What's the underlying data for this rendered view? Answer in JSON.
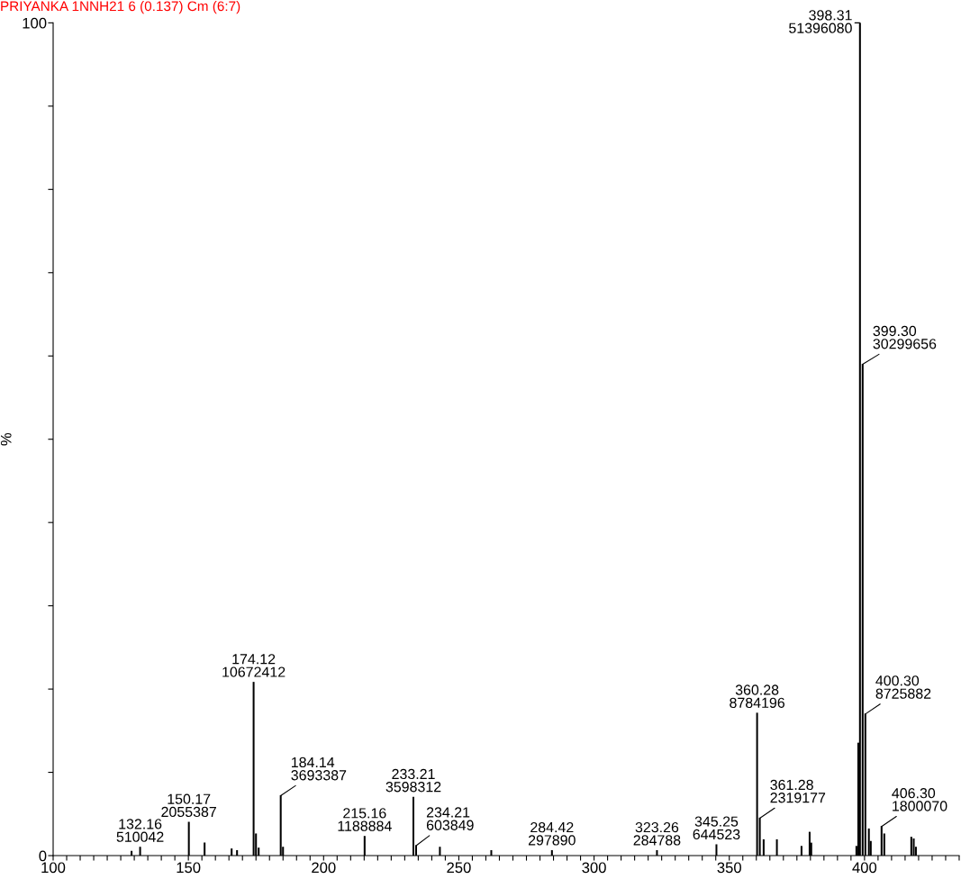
{
  "chart_data": {
    "type": "bar",
    "title": "PRIYANKA 1NNH21 6 (0.137) Cm (6:7)",
    "ylabel": "%",
    "x": [
      129.0,
      132.16,
      150.17,
      156.0,
      166.0,
      168.0,
      174.12,
      175.0,
      176.0,
      184.14,
      185.0,
      215.16,
      233.21,
      234.21,
      243.0,
      262.0,
      284.42,
      323.26,
      345.25,
      360.28,
      361.28,
      362.7,
      367.6,
      376.7,
      379.7,
      380.3,
      397.0,
      397.7,
      398.31,
      399.3,
      400.3,
      401.6,
      402.3,
      406.3,
      407.3,
      417.3,
      418.2,
      419.0
    ],
    "series": [
      {
        "color": "#000000",
        "values": [
          0.5,
          1.0,
          4.0,
          1.5,
          0.8,
          0.6,
          20.8,
          2.6,
          0.9,
          7.2,
          1.0,
          2.3,
          7.0,
          1.2,
          1.0,
          0.6,
          0.6,
          0.6,
          1.3,
          17.1,
          4.5,
          1.9,
          1.9,
          1.1,
          2.8,
          1.5,
          1.1,
          13.5,
          100.0,
          59.0,
          17.0,
          3.2,
          1.7,
          3.5,
          2.6,
          2.2,
          2.0,
          1.0
        ]
      }
    ],
    "annotations": [
      {
        "text": "132.16\n510042",
        "x": 132.16,
        "y": 1.0
      },
      {
        "text": "150.17\n2055387",
        "x": 150.17,
        "y": 4.0
      },
      {
        "text": "174.12\n10672412",
        "x": 174.12,
        "y": 20.8
      },
      {
        "text": "184.14\n3693387",
        "x": 184.14,
        "y": 7.2
      },
      {
        "text": "215.16\n1188884",
        "x": 215.16,
        "y": 2.3
      },
      {
        "text": "233.21\n3598312",
        "x": 233.21,
        "y": 7.0
      },
      {
        "text": "234.21\n603849",
        "x": 234.21,
        "y": 1.2
      },
      {
        "text": "284.42\n297890",
        "x": 284.42,
        "y": 0.6
      },
      {
        "text": "323.26\n284788",
        "x": 323.26,
        "y": 0.6
      },
      {
        "text": "345.25\n644523",
        "x": 345.25,
        "y": 1.3
      },
      {
        "text": "360.28\n8784196",
        "x": 360.28,
        "y": 17.1
      },
      {
        "text": "361.28\n2319177",
        "x": 361.28,
        "y": 4.5
      },
      {
        "text": "398.31\n51396080",
        "x": 398.31,
        "y": 100.0
      },
      {
        "text": "399.30\n30299656",
        "x": 399.3,
        "y": 59.0
      },
      {
        "text": "400.30\n8725882",
        "x": 400.3,
        "y": 17.0
      },
      {
        "text": "406.30\n1800070",
        "x": 406.3,
        "y": 3.5
      }
    ],
    "xlim": [
      100,
      435
    ],
    "xticks": [
      100,
      {
        "value": 105,
        "label": null
      },
      {
        "value": 110,
        "label": null
      },
      {
        "value": 115,
        "label": null
      },
      {
        "value": 120,
        "label": null
      },
      {
        "value": 125,
        "label": null
      },
      {
        "value": 130,
        "label": null
      },
      {
        "value": 135,
        "label": null
      },
      {
        "value": 140,
        "label": null
      },
      {
        "value": 145,
        "label": null
      },
      150,
      {
        "value": 155,
        "label": null
      },
      {
        "value": 160,
        "label": null
      },
      {
        "value": 165,
        "label": null
      },
      {
        "value": 170,
        "label": null
      },
      {
        "value": 175,
        "label": null
      },
      {
        "value": 180,
        "label": null
      },
      {
        "value": 185,
        "label": null
      },
      {
        "value": 190,
        "label": null
      },
      {
        "value": 195,
        "label": null
      },
      200,
      {
        "value": 205,
        "label": null
      },
      {
        "value": 210,
        "label": null
      },
      {
        "value": 215,
        "label": null
      },
      {
        "value": 220,
        "label": null
      },
      {
        "value": 225,
        "label": null
      },
      {
        "value": 230,
        "label": null
      },
      {
        "value": 235,
        "label": null
      },
      {
        "value": 240,
        "label": null
      },
      {
        "value": 245,
        "label": null
      },
      250,
      {
        "value": 255,
        "label": null
      },
      {
        "value": 260,
        "label": null
      },
      {
        "value": 265,
        "label": null
      },
      {
        "value": 270,
        "label": null
      },
      {
        "value": 275,
        "label": null
      },
      {
        "value": 280,
        "label": null
      },
      {
        "value": 285,
        "label": null
      },
      {
        "value": 290,
        "label": null
      },
      {
        "value": 295,
        "label": null
      },
      300,
      {
        "value": 305,
        "label": null
      },
      {
        "value": 310,
        "label": null
      },
      {
        "value": 315,
        "label": null
      },
      {
        "value": 320,
        "label": null
      },
      {
        "value": 325,
        "label": null
      },
      {
        "value": 330,
        "label": null
      },
      {
        "value": 335,
        "label": null
      },
      {
        "value": 340,
        "label": null
      },
      {
        "value": 345,
        "label": null
      },
      350,
      {
        "value": 355,
        "label": null
      },
      {
        "value": 360,
        "label": null
      },
      {
        "value": 365,
        "label": null
      },
      {
        "value": 370,
        "label": null
      },
      {
        "value": 375,
        "label": null
      },
      {
        "value": 380,
        "label": null
      },
      {
        "value": 385,
        "label": null
      },
      {
        "value": 390,
        "label": null
      },
      {
        "value": 395,
        "label": null
      },
      400,
      {
        "value": 405,
        "label": null
      },
      {
        "value": 410,
        "label": null
      },
      {
        "value": 415,
        "label": null
      },
      {
        "value": 420,
        "label": null
      },
      {
        "value": 425,
        "label": null
      },
      {
        "value": 430,
        "label": null
      },
      {
        "value": 435,
        "label": null
      }
    ],
    "ylim": [
      0,
      100
    ],
    "yticks": [
      0,
      {
        "value": 10,
        "label": null
      },
      {
        "value": 20,
        "label": null
      },
      {
        "value": 30,
        "label": null
      },
      {
        "value": 40,
        "label": null
      },
      {
        "value": 50,
        "label": null
      },
      {
        "value": 60,
        "label": null
      },
      {
        "value": 70,
        "label": null
      },
      {
        "value": 80,
        "label": null
      },
      {
        "value": 90,
        "label": null
      },
      100
    ],
    "grid": false,
    "legend": false
  }
}
